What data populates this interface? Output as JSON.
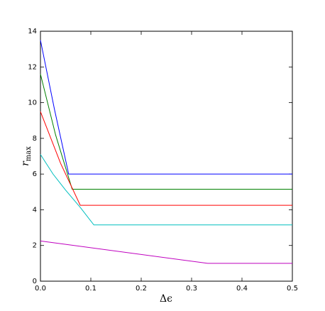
{
  "chart_data": {
    "type": "line",
    "xlabel": "Δϵ",
    "ylabel": {
      "base": "r",
      "sub": "max"
    },
    "xlim": [
      0,
      0.5
    ],
    "ylim": [
      0,
      14
    ],
    "xticks": [
      {
        "value": 0,
        "label": "0.0"
      },
      {
        "value": 0.1,
        "label": "0.1"
      },
      {
        "value": 0.2,
        "label": "0.2"
      },
      {
        "value": 0.3,
        "label": "0.3"
      },
      {
        "value": 0.4,
        "label": "0.4"
      },
      {
        "value": 0.5,
        "label": "0.5"
      }
    ],
    "yticks": [
      0,
      2,
      4,
      6,
      8,
      10,
      12,
      14
    ],
    "series": [
      {
        "color": "#0000ff",
        "x": [
          0,
          0.028,
          0.056,
          0.5
        ],
        "values": [
          13.5,
          9.6,
          6.0,
          6.0
        ]
      },
      {
        "color": "#008000",
        "x": [
          0,
          0.03,
          0.063,
          0.5
        ],
        "values": [
          11.6,
          8.2,
          5.15,
          5.15
        ]
      },
      {
        "color": "#ff0000",
        "x": [
          0,
          0.04,
          0.079,
          0.5
        ],
        "values": [
          9.5,
          6.6,
          4.25,
          4.25
        ]
      },
      {
        "color": "#00bfbf",
        "x": [
          0,
          0.025,
          0.05,
          0.08,
          0.106,
          0.5
        ],
        "values": [
          7.1,
          6.0,
          5.1,
          4.1,
          3.15,
          3.15
        ]
      },
      {
        "color": "#bf00bf",
        "x": [
          0,
          0.332,
          0.5
        ],
        "values": [
          2.25,
          1.0,
          1.0
        ]
      }
    ]
  }
}
